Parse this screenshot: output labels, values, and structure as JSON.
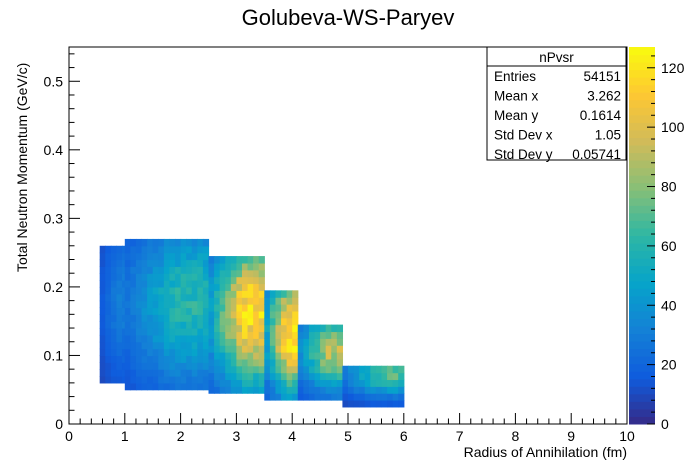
{
  "chart_data": {
    "type": "heatmap",
    "title": "Golubeva-WS-Paryev",
    "xlabel": "Radius of Annihilation (fm)",
    "ylabel": "Total Neutron Momentum (GeV/c)",
    "xlim": [
      0,
      10
    ],
    "ylim": [
      0,
      0.55
    ],
    "x_ticks": [
      0,
      1,
      2,
      3,
      4,
      5,
      6,
      7,
      8,
      9,
      10
    ],
    "y_ticks": [
      0,
      0.1,
      0.2,
      0.3,
      0.4,
      0.5
    ],
    "y_tick_labels": [
      "0",
      "0.1",
      "0.2",
      "0.3",
      "0.4",
      "0.5"
    ],
    "z_range": [
      0,
      127
    ],
    "z_ticks": [
      0,
      20,
      40,
      60,
      80,
      100,
      120
    ],
    "palette": [
      "#352a87",
      "#0f5cdd",
      "#1481d6",
      "#06a4ca",
      "#2eb7a4",
      "#87bf77",
      "#d1bb59",
      "#fec832",
      "#f9fb0e"
    ],
    "stats_box": {
      "title": "nPvsr",
      "rows": [
        {
          "label": "Entries",
          "value": "54151"
        },
        {
          "label": "Mean x",
          "value": "3.262"
        },
        {
          "label": "Mean y",
          "value": "0.1614"
        },
        {
          "label": "Std Dev x",
          "value": "1.05"
        },
        {
          "label": "Std Dev y",
          "value": "0.05741"
        }
      ]
    },
    "grid": false,
    "bands": [
      {
        "x": [
          0.55,
          1.0
        ],
        "y": [
          0.06,
          0.26
        ],
        "peak": 30
      },
      {
        "x": [
          1.0,
          2.5
        ],
        "y": [
          0.05,
          0.265
        ],
        "peak": 60
      },
      {
        "x": [
          2.5,
          3.5
        ],
        "y": [
          0.045,
          0.24
        ],
        "peak": 118
      },
      {
        "x": [
          3.5,
          4.1
        ],
        "y": [
          0.035,
          0.19
        ],
        "peak": 125
      },
      {
        "x": [
          4.1,
          4.9
        ],
        "y": [
          0.035,
          0.14
        ],
        "peak": 90
      },
      {
        "x": [
          4.9,
          6.0
        ],
        "y": [
          0.025,
          0.08
        ],
        "peak": 70
      }
    ]
  }
}
